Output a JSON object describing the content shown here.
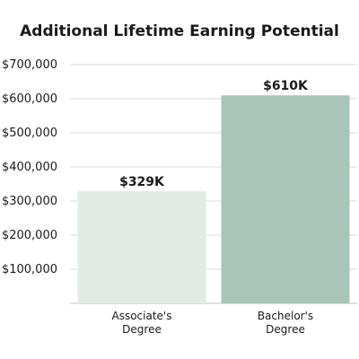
{
  "chart_data": {
    "type": "bar",
    "title": "Additional Lifetime Earning Potential",
    "xlabel": "",
    "ylabel": "",
    "categories": [
      [
        "Associate's",
        "Degree"
      ],
      [
        "Bachelor's",
        "Degree"
      ]
    ],
    "values": [
      329000,
      610000
    ],
    "data_labels": [
      "$329K",
      "$610K"
    ],
    "bar_colors": [
      "#e3eae6",
      "#a9c5ba"
    ],
    "ylim": [
      0,
      700000
    ],
    "yticks": [
      100000,
      200000,
      300000,
      400000,
      500000,
      600000,
      700000
    ],
    "ytick_labels": [
      "$100,000",
      "$200,000",
      "$300,000",
      "$400,000",
      "$500,000",
      "$600,000",
      "$700,000"
    ],
    "grid": true,
    "legend": "none"
  }
}
